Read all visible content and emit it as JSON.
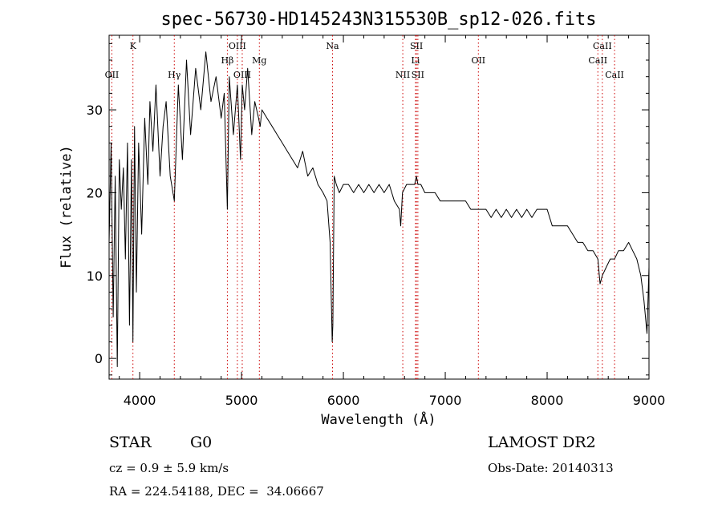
{
  "chart_data": {
    "type": "line",
    "title": "spec-56730-HD145243N315530B_sp12-026.fits",
    "xlabel": "Wavelength (Å)",
    "ylabel": "Flux (relative)",
    "xlim": [
      3700,
      9000
    ],
    "ylim": [
      -2.5,
      39
    ],
    "xticks": [
      4000,
      5000,
      6000,
      7000,
      8000,
      9000
    ],
    "yticks": [
      0,
      10,
      20,
      30
    ],
    "line_color": "#000000",
    "marker_color": "#cc0000",
    "series": [
      {
        "x": [
          3700,
          3720,
          3740,
          3760,
          3780,
          3800,
          3820,
          3840,
          3860,
          3880,
          3900,
          3920,
          3934,
          3950,
          3968,
          3990,
          4020,
          4050,
          4080,
          4101,
          4130,
          4160,
          4200,
          4230,
          4260,
          4300,
          4340,
          4380,
          4420,
          4460,
          4500,
          4550,
          4600,
          4650,
          4700,
          4750,
          4800,
          4830,
          4861,
          4880,
          4920,
          4959,
          4990,
          5007,
          5030,
          5060,
          5100,
          5130,
          5167,
          5183,
          5200,
          5250,
          5300,
          5350,
          5400,
          5450,
          5500,
          5550,
          5600,
          5650,
          5700,
          5750,
          5800,
          5840,
          5870,
          5890,
          5896,
          5910,
          5930,
          5960,
          6000,
          6050,
          6100,
          6150,
          6200,
          6250,
          6300,
          6350,
          6400,
          6450,
          6500,
          6550,
          6563,
          6580,
          6620,
          6660,
          6700,
          6717,
          6731,
          6760,
          6800,
          6850,
          6900,
          6950,
          7000,
          7050,
          7100,
          7150,
          7200,
          7250,
          7300,
          7350,
          7400,
          7450,
          7500,
          7550,
          7600,
          7650,
          7700,
          7750,
          7800,
          7850,
          7900,
          7950,
          8000,
          8050,
          8100,
          8150,
          8200,
          8250,
          8300,
          8350,
          8400,
          8450,
          8498,
          8520,
          8542,
          8580,
          8620,
          8662,
          8700,
          8750,
          8800,
          8840,
          8880,
          8920,
          8950,
          8980,
          9000
        ],
        "values": [
          14,
          26,
          5,
          22,
          -1,
          24,
          18,
          23,
          12,
          26,
          4,
          24,
          2,
          28,
          8,
          26,
          15,
          29,
          21,
          31,
          25,
          33,
          22,
          28,
          31,
          22,
          19,
          33,
          24,
          36,
          27,
          35,
          30,
          37,
          31,
          34,
          29,
          32,
          18,
          34,
          27,
          33,
          24,
          33,
          30,
          35,
          27,
          31,
          29,
          28,
          30,
          29,
          28,
          27,
          26,
          25,
          24,
          23,
          25,
          22,
          23,
          21,
          20,
          19,
          14,
          2,
          4,
          22,
          21,
          20,
          21,
          21,
          20,
          21,
          20,
          21,
          20,
          21,
          20,
          21,
          19,
          18,
          16,
          20,
          21,
          21,
          21,
          22,
          21,
          21,
          20,
          20,
          20,
          19,
          19,
          19,
          19,
          19,
          19,
          18,
          18,
          18,
          18,
          17,
          18,
          17,
          18,
          17,
          18,
          17,
          18,
          17,
          18,
          18,
          18,
          16,
          16,
          16,
          16,
          15,
          14,
          14,
          13,
          13,
          12,
          9,
          10,
          11,
          12,
          12,
          13,
          13,
          14,
          13,
          12,
          10,
          7,
          3,
          11
        ]
      }
    ],
    "lines": [
      {
        "name": "K",
        "x": 3934,
        "row": 0
      },
      {
        "name": "OII",
        "x": 3727,
        "row": 2
      },
      {
        "name": "Hγ",
        "x": 4340,
        "row": 2
      },
      {
        "name": "OIII",
        "x": 4959,
        "row": 0
      },
      {
        "name": "Hβ",
        "x": 4861,
        "row": 1
      },
      {
        "name": "OIII",
        "x": 5007,
        "row": 2
      },
      {
        "name": "Mg",
        "x": 5175,
        "row": 1
      },
      {
        "name": "Na",
        "x": 5893,
        "row": 0
      },
      {
        "name": "SII",
        "x": 6717,
        "row": 0
      },
      {
        "name": "Li",
        "x": 6708,
        "row": 1
      },
      {
        "name": "NII",
        "x": 6583,
        "row": 2
      },
      {
        "name": "SII",
        "x": 6731,
        "row": 2
      },
      {
        "name": "OII",
        "x": 7325,
        "row": 1
      },
      {
        "name": "CaII",
        "x": 8542,
        "row": 0
      },
      {
        "name": "CaII",
        "x": 8498,
        "row": 1
      },
      {
        "name": "CaII",
        "x": 8662,
        "row": 2
      }
    ]
  },
  "info": {
    "class_label": "STAR",
    "subclass": "G0",
    "survey": "LAMOST DR2",
    "cz": "cz = 0.9 ± 5.9 km/s",
    "obs_date": "Obs-Date: 20140313",
    "coords": "RA = 224.54188, DEC =  34.06667"
  }
}
